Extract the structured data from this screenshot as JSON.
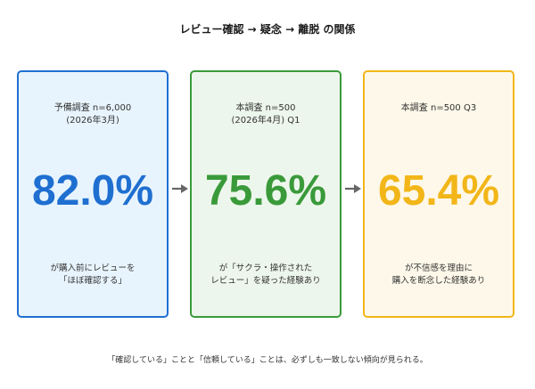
{
  "title": "レビュー確認 → 疑念 → 離脱 の関係",
  "cards": [
    {
      "head_lines": [
        "予備調査 n=6,000",
        "(2026年3月)"
      ],
      "value": "82.0%",
      "note_lines": [
        "が購入前にレビューを",
        "「ほぼ確認する」"
      ],
      "colors": {
        "border": "#1f6fd1",
        "bg": "#e8f4fd",
        "value": "#1f6fd1"
      }
    },
    {
      "head_lines": [
        "本調査 n=500",
        "(2026年4月) Q1"
      ],
      "value": "75.6%",
      "note_lines": [
        "が「サクラ・操作された",
        "レビュー」を疑った経験あり"
      ],
      "colors": {
        "border": "#3a9a3a",
        "bg": "#edf6ec",
        "value": "#3a9a3a"
      }
    },
    {
      "head_lines": [
        "本調査 n=500 Q3"
      ],
      "value": "65.4%",
      "note_lines": [
        "が不信感を理由に",
        "購入を断念した経験あり"
      ],
      "colors": {
        "border": "#f2b619",
        "bg": "#fdf8e9",
        "value": "#f2b619"
      }
    }
  ],
  "arrow_color": "#666666",
  "footnote": "「確認している」ことと「信頼している」ことは、必ずしも一致しない傾向が見られる。"
}
